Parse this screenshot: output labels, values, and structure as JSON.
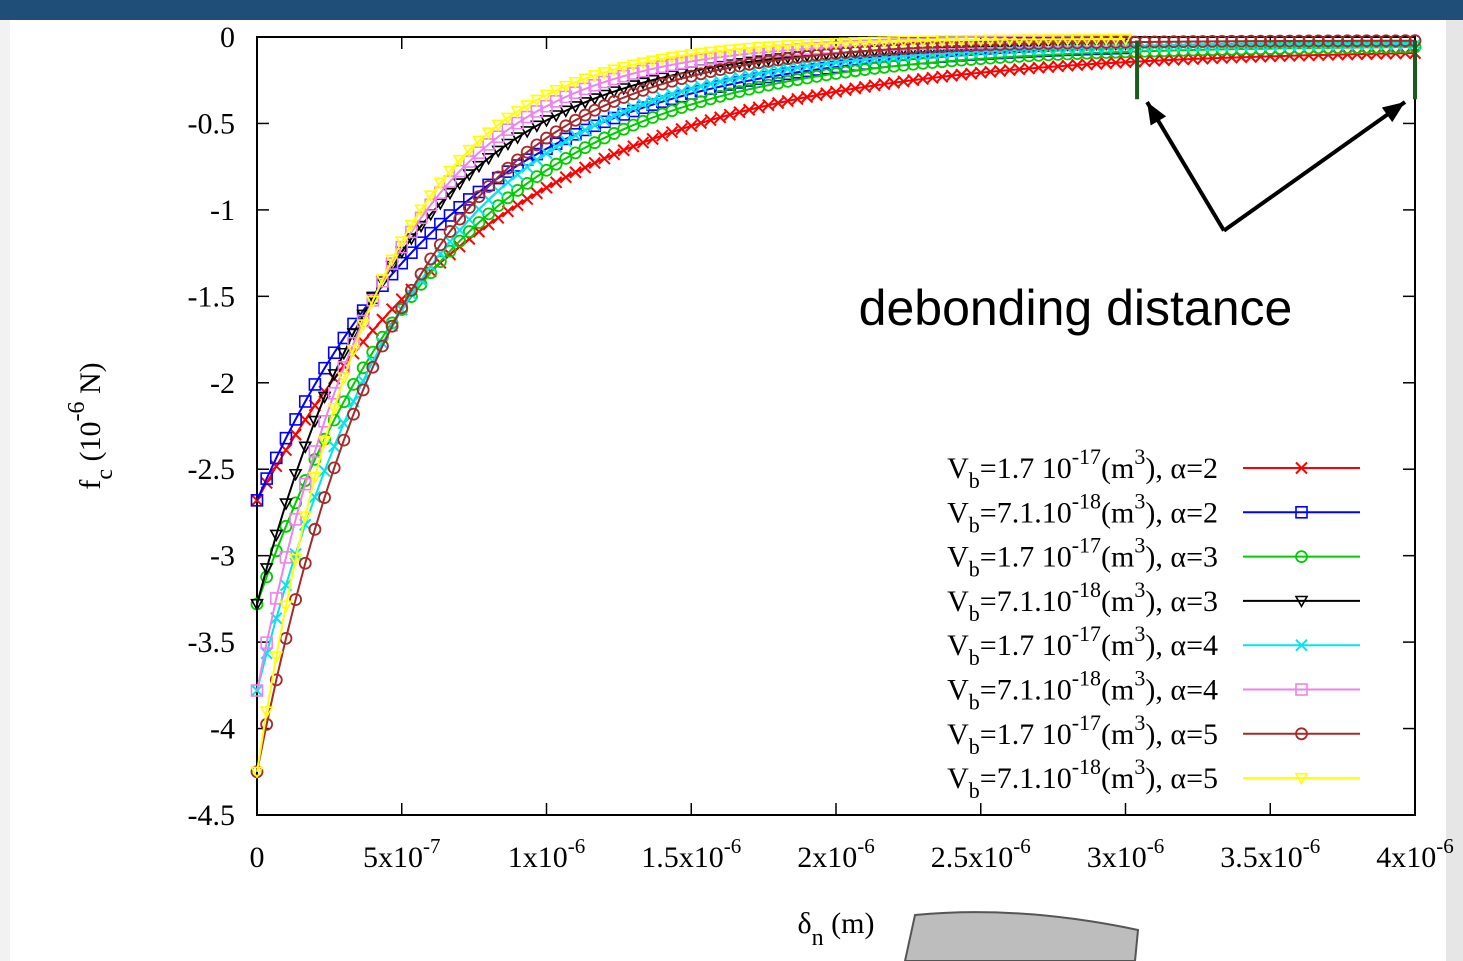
{
  "chart_data": {
    "type": "line",
    "xlabel": "δ",
    "xlabel_sub": "n",
    "xlabel_unit": " (m)",
    "ylabel": "f",
    "ylabel_sub": "c",
    "ylabel_unit_prefix": " (10",
    "ylabel_unit_exp": "-6",
    "ylabel_unit_suffix": " N)",
    "xlim": [
      0,
      4e-06
    ],
    "ylim": [
      -4.5,
      0
    ],
    "grid": false,
    "legend_position": "lower-right",
    "x_ticks": [
      {
        "v": 0,
        "base": "0",
        "exp": ""
      },
      {
        "v": 5e-07,
        "base": "5x10",
        "exp": "-7"
      },
      {
        "v": 1e-06,
        "base": "1x10",
        "exp": "-6"
      },
      {
        "v": 1.5e-06,
        "base": "1.5x10",
        "exp": "-6"
      },
      {
        "v": 2e-06,
        "base": "2x10",
        "exp": "-6"
      },
      {
        "v": 2.5e-06,
        "base": "2.5x10",
        "exp": "-6"
      },
      {
        "v": 3e-06,
        "base": "3x10",
        "exp": "-6"
      },
      {
        "v": 3.5e-06,
        "base": "3.5x10",
        "exp": "-6"
      },
      {
        "v": 4e-06,
        "base": "4x10",
        "exp": "-6"
      }
    ],
    "y_ticks": [
      {
        "v": 0,
        "label": "0"
      },
      {
        "v": -0.5,
        "label": "-0.5"
      },
      {
        "v": -1,
        "label": "-1"
      },
      {
        "v": -1.5,
        "label": "-1.5"
      },
      {
        "v": -2,
        "label": "-2"
      },
      {
        "v": -2.5,
        "label": "-2.5"
      },
      {
        "v": -3,
        "label": "-3"
      },
      {
        "v": -3.5,
        "label": "-3.5"
      },
      {
        "v": -4,
        "label": "-4"
      },
      {
        "v": -4.5,
        "label": "-4.5"
      }
    ],
    "annotation": {
      "text": "debonding distance",
      "arrow_tips": [
        [
          3.04e-06,
          -0.33
        ],
        [
          4e-06,
          -0.33
        ]
      ],
      "arrow_origin": [
        3.34e-06,
        -1.12
      ],
      "label_anchor": [
        3e-06,
        -1.55
      ]
    },
    "series": [
      {
        "vb": "1.7 10",
        "vb_exp": "-17",
        "alpha": "α=2",
        "color": "#ff0000",
        "marker": "x",
        "f0": -2.68,
        "k": 0.85,
        "x_end": 4e-06,
        "y_end": -0.07
      },
      {
        "vb": "7.1.10",
        "vb_exp": "-18",
        "alpha": "α=2",
        "color": "#0000ff",
        "marker": "square",
        "f0": -2.68,
        "k": 1.05,
        "x_end": 3e-06,
        "y_end": -0.03
      },
      {
        "vb": "1.7 10",
        "vb_exp": "-17",
        "alpha": "α=3",
        "color": "#00cc00",
        "marker": "circle",
        "f0": -3.28,
        "k": 1.08,
        "x_end": 4e-06,
        "y_end": -0.05
      },
      {
        "vb": "7.1.10",
        "vb_exp": "-18",
        "alpha": "α=3",
        "color": "#000000",
        "marker": "tri-down",
        "f0": -3.28,
        "k": 1.42,
        "x_end": 3e-06,
        "y_end": -0.03
      },
      {
        "vb": "1.7 10",
        "vb_exp": "-17",
        "alpha": "α=4",
        "color": "#00e5ee",
        "marker": "x",
        "f0": -3.78,
        "k": 1.28,
        "x_end": 4e-06,
        "y_end": -0.04
      },
      {
        "vb": "7.1.10",
        "vb_exp": "-18",
        "alpha": "α=4",
        "color": "#ee82ee",
        "marker": "square",
        "f0": -3.78,
        "k": 1.65,
        "x_end": 3e-06,
        "y_end": -0.02
      },
      {
        "vb": "1.7 10",
        "vb_exp": "-17",
        "alpha": "α=5",
        "color": "#a52a2a",
        "marker": "circle",
        "f0": -4.25,
        "k": 1.45,
        "x_end": 4e-06,
        "y_end": -0.02
      },
      {
        "vb": "7.1.10",
        "vb_exp": "-18",
        "alpha": "α=5",
        "color": "#ffff00",
        "marker": "tri-down",
        "f0": -4.25,
        "k": 1.85,
        "x_end": 3e-06,
        "y_end": -0.01
      }
    ],
    "legend_prefix": "V",
    "legend_prefix_sub": "b",
    "legend_unit_open": "(m",
    "legend_unit_exp": "3",
    "legend_unit_close": "), "
  }
}
